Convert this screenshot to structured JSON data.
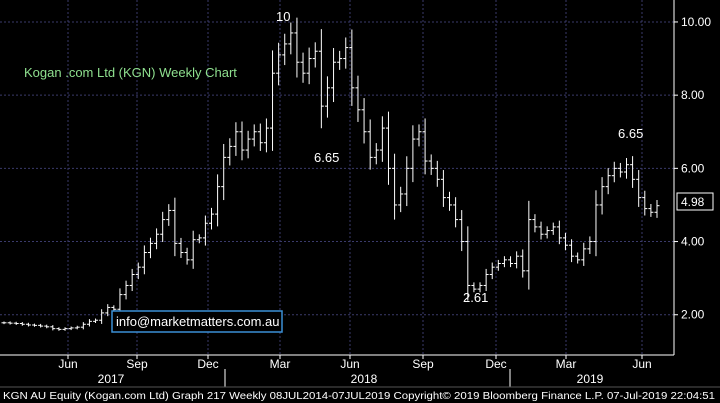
{
  "chart_data": {
    "type": "ohlc-bar",
    "title": "Kogan .com Ltd (KGN) Weekly Chart",
    "watermark": "info@marketmatters.com.au",
    "y_ticks": [
      "2.00",
      "4.00",
      "6.00",
      "8.00",
      "10.00"
    ],
    "y_range": [
      0.9,
      10.6
    ],
    "x_month_labels": [
      "Jun",
      "Sep",
      "Dec",
      "Mar",
      "Jun",
      "Sep",
      "Dec",
      "Mar",
      "Jun"
    ],
    "x_year_labels": [
      "2017",
      "2018",
      "2019"
    ],
    "last_price_label": "4.98",
    "annotations": [
      "10",
      "6.65",
      "2.61",
      "6.65"
    ],
    "footer": "KGN AU Equity (Kogan.com Ltd) Graph 217  Weekly 08JUL2014-07JUL2019  Copyright© 2019 Bloomberg Finance L.P.  07-Jul-2019 22:04:51",
    "colors": {
      "background": "#000000",
      "bars": "#ffffff",
      "grid": "#3a3a6a",
      "title": "#8fe08f",
      "watermark_border": "#3b8fd6",
      "price_box": "#ffffff"
    },
    "close_series": [
      1.78,
      1.77,
      1.76,
      1.74,
      1.72,
      1.71,
      1.69,
      1.67,
      1.62,
      1.6,
      1.62,
      1.64,
      1.66,
      1.74,
      1.82,
      1.85,
      2.05,
      2.2,
      2.15,
      2.55,
      2.8,
      3.1,
      3.3,
      3.7,
      3.95,
      4.2,
      4.6,
      4.85,
      3.95,
      3.7,
      3.5,
      4.05,
      4.1,
      4.5,
      4.75,
      5.5,
      6.3,
      6.6,
      7.0,
      6.5,
      6.8,
      7.0,
      6.7,
      7.1,
      8.6,
      9.1,
      9.4,
      9.7,
      8.9,
      8.6,
      9.0,
      9.2,
      7.7,
      8.2,
      8.9,
      9.0,
      9.3,
      8.2,
      7.6,
      7.0,
      6.3,
      6.5,
      7.1,
      6.0,
      5.0,
      5.3,
      6.0,
      6.8,
      7.0,
      6.2,
      6.0,
      5.7,
      5.2,
      5.0,
      4.6,
      4.0,
      2.8,
      2.7,
      2.8,
      3.1,
      3.3,
      3.4,
      3.5,
      3.4,
      3.6,
      3.2,
      4.6,
      4.4,
      4.2,
      4.3,
      4.4,
      4.1,
      3.9,
      3.6,
      3.5,
      3.8,
      4.0,
      5.0,
      5.5,
      5.8,
      6.0,
      5.9,
      6.1,
      5.7,
      5.2,
      4.9,
      4.8,
      4.98
    ]
  }
}
